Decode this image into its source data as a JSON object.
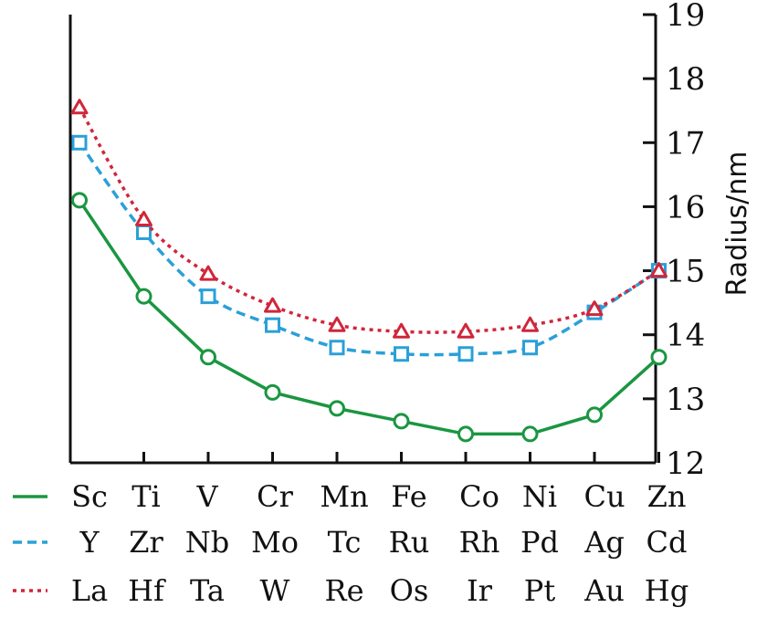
{
  "chart_data": {
    "type": "line",
    "ylabel": "Radius/nm",
    "ylim": [
      12,
      19
    ],
    "yticks": [
      12,
      13,
      14,
      15,
      16,
      17,
      18,
      19
    ],
    "y_axis_side": "right",
    "rows": [
      [
        "Sc",
        "Ti",
        "V",
        "Cr",
        "Mn",
        "Fe",
        "Co",
        "Ni",
        "Cu",
        "Zn"
      ],
      [
        "Y",
        "Zr",
        "Nb",
        "Mo",
        "Tc",
        "Ru",
        "Rh",
        "Pd",
        "Ag",
        "Cd"
      ],
      [
        "La",
        "Hf",
        "Ta",
        "W",
        "Re",
        "Os",
        "Ir",
        "Pt",
        "Au",
        "Hg"
      ]
    ],
    "series": [
      {
        "line_style": "solid",
        "marker": "circle",
        "color": "#1a9641",
        "values": [
          16.1,
          14.6,
          13.65,
          13.1,
          12.85,
          12.65,
          12.45,
          12.45,
          12.75,
          13.65
        ]
      },
      {
        "line_style": "dashed",
        "marker": "square",
        "color": "#2aa0d8",
        "values": [
          17.0,
          15.6,
          14.6,
          14.15,
          13.8,
          13.7,
          13.7,
          13.8,
          14.35,
          15.0
        ]
      },
      {
        "line_style": "dotted",
        "marker": "triangle",
        "color": "#d0263b",
        "values": [
          17.55,
          15.8,
          14.95,
          14.45,
          14.15,
          14.05,
          14.05,
          14.15,
          14.4,
          15.0
        ]
      }
    ]
  }
}
